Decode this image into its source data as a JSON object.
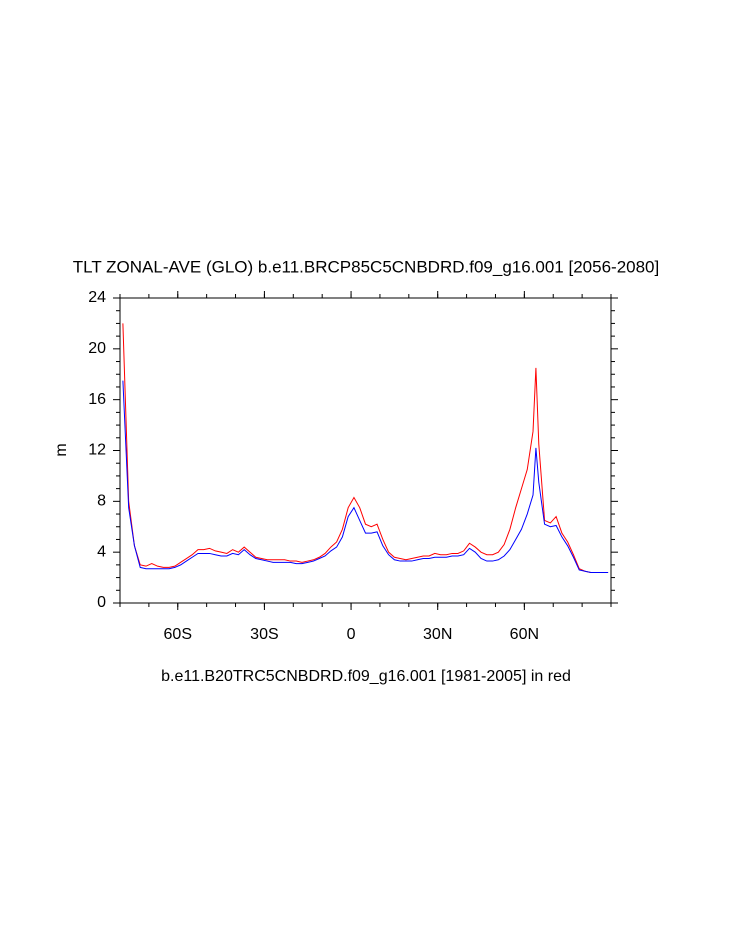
{
  "chart_data": {
    "type": "line",
    "title": "TLT ZONAL-AVE (GLO) b.e11.BRCP85C5CNBDRD.f09_g16.001 [2056-2080]",
    "subtitle": "b.e11.B20TRC5CNBDRD.f09_g16.001 [1981-2005] in red",
    "y_label": "m",
    "x": [
      -79,
      -77,
      -75,
      -73,
      -71,
      -69,
      -67,
      -65,
      -63,
      -61,
      -59,
      -57,
      -55,
      -53,
      -51,
      -49,
      -47,
      -45,
      -43,
      -41,
      -39,
      -37,
      -35,
      -33,
      -31,
      -29,
      -27,
      -25,
      -23,
      -21,
      -19,
      -17,
      -15,
      -13,
      -11,
      -9,
      -7,
      -5,
      -3,
      -1,
      1,
      3,
      5,
      7,
      9,
      11,
      13,
      15,
      17,
      19,
      21,
      23,
      25,
      27,
      29,
      31,
      33,
      35,
      37,
      39,
      41,
      43,
      45,
      47,
      49,
      51,
      53,
      55,
      57,
      59,
      61,
      63,
      64,
      65,
      67,
      69,
      71,
      73,
      75,
      77,
      79,
      81,
      83,
      85,
      87,
      89
    ],
    "series": [
      {
        "color": "#ff0000",
        "values": [
          22,
          8,
          4.5,
          3.0,
          2.9,
          3.1,
          2.9,
          2.8,
          2.8,
          2.9,
          3.2,
          3.5,
          3.8,
          4.2,
          4.2,
          4.3,
          4.1,
          4.0,
          3.9,
          4.2,
          4.0,
          4.4,
          4.0,
          3.6,
          3.5,
          3.4,
          3.4,
          3.4,
          3.4,
          3.3,
          3.3,
          3.2,
          3.3,
          3.4,
          3.6,
          3.9,
          4.4,
          4.8,
          5.8,
          7.5,
          8.3,
          7.5,
          6.2,
          6.0,
          6.2,
          5.0,
          4.0,
          3.6,
          3.5,
          3.4,
          3.5,
          3.6,
          3.7,
          3.7,
          3.9,
          3.8,
          3.8,
          3.9,
          3.9,
          4.1,
          4.7,
          4.4,
          4.0,
          3.8,
          3.8,
          4.0,
          4.6,
          5.8,
          7.5,
          9.0,
          10.5,
          13.5,
          18.5,
          12.5,
          6.5,
          6.3,
          6.8,
          5.5,
          4.8,
          3.8,
          2.7,
          2.5,
          2.4,
          2.4,
          2.4,
          2.4
        ]
      },
      {
        "color": "#0000ff",
        "values": [
          17.5,
          7.5,
          4.5,
          2.8,
          2.7,
          2.7,
          2.7,
          2.7,
          2.7,
          2.8,
          3.0,
          3.3,
          3.6,
          3.9,
          3.9,
          3.9,
          3.8,
          3.7,
          3.7,
          3.9,
          3.8,
          4.2,
          3.8,
          3.5,
          3.4,
          3.3,
          3.2,
          3.2,
          3.2,
          3.2,
          3.1,
          3.1,
          3.2,
          3.3,
          3.5,
          3.7,
          4.1,
          4.4,
          5.2,
          6.8,
          7.5,
          6.5,
          5.5,
          5.5,
          5.6,
          4.5,
          3.8,
          3.4,
          3.3,
          3.3,
          3.3,
          3.4,
          3.5,
          3.5,
          3.6,
          3.6,
          3.6,
          3.7,
          3.7,
          3.8,
          4.3,
          4.0,
          3.5,
          3.3,
          3.3,
          3.4,
          3.7,
          4.2,
          5.0,
          5.8,
          7.0,
          8.5,
          12.2,
          9.5,
          6.2,
          6.0,
          6.1,
          5.2,
          4.5,
          3.6,
          2.6,
          2.5,
          2.4,
          2.4,
          2.4,
          2.4
        ]
      }
    ],
    "xlim": [
      -80,
      90
    ],
    "ylim": [
      0,
      24
    ],
    "xticks": [
      {
        "value": -60,
        "label": "60S"
      },
      {
        "value": -30,
        "label": "30S"
      },
      0,
      {
        "value": 30,
        "label": "30N"
      },
      {
        "value": 60,
        "label": "60N"
      }
    ],
    "yticks": [
      0,
      4,
      8,
      12,
      16,
      20,
      24
    ]
  }
}
